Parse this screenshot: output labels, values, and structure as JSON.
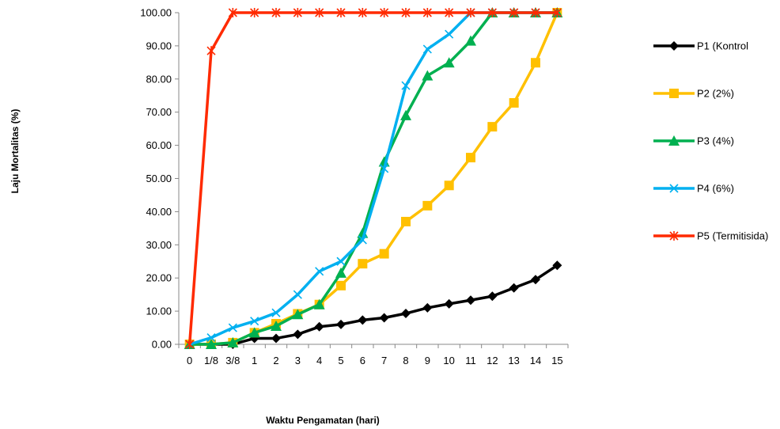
{
  "chart_data": {
    "type": "line",
    "title": "",
    "xlabel": "Waktu Pengamatan (hari)",
    "ylabel": "Laju Mortalitas (%)",
    "ylim": [
      0,
      100
    ],
    "y_ticks": [
      "0.00",
      "10.00",
      "20.00",
      "30.00",
      "40.00",
      "50.00",
      "60.00",
      "70.00",
      "80.00",
      "90.00",
      "100.00"
    ],
    "categories": [
      "0",
      "1/8",
      "3/8",
      "1",
      "2",
      "3",
      "4",
      "5",
      "6",
      "7",
      "8",
      "9",
      "10",
      "11",
      "12",
      "13",
      "14",
      "15"
    ],
    "grid": false,
    "legend_position": "right",
    "series": [
      {
        "name": "P1 (Kontrol",
        "color": "#000000",
        "marker": "diamond",
        "values": [
          0,
          0,
          0,
          1.8,
          1.8,
          3.0,
          5.3,
          6.0,
          7.3,
          8.0,
          9.3,
          11.0,
          12.2,
          13.3,
          14.5,
          17.0,
          19.5,
          23.8
        ]
      },
      {
        "name": "P2 (2%)",
        "color": "#FFC000",
        "marker": "square",
        "values": [
          0,
          0,
          0.5,
          3.5,
          6.2,
          9.2,
          12.0,
          17.7,
          24.3,
          27.3,
          37.0,
          41.8,
          47.9,
          56.3,
          65.6,
          72.8,
          84.9,
          100
        ]
      },
      {
        "name": "P3 (4%)",
        "color": "#00B050",
        "marker": "triangle",
        "values": [
          0,
          0,
          0.5,
          3.5,
          5.5,
          9.0,
          12.0,
          21.5,
          33.5,
          55.0,
          69.0,
          81.0,
          84.9,
          91.5,
          100,
          100,
          100,
          100
        ]
      },
      {
        "name": "P4 (6%)",
        "color": "#00B0F0",
        "marker": "x",
        "values": [
          0,
          2.0,
          5.0,
          7.0,
          9.5,
          15.0,
          22.0,
          25.0,
          31.5,
          53.0,
          78.0,
          89.0,
          93.5,
          100,
          100,
          100,
          100,
          100
        ]
      },
      {
        "name": "P5 (Termitisida)",
        "color": "#FF2A00",
        "marker": "asterisk",
        "values": [
          0,
          88.5,
          100,
          100,
          100,
          100,
          100,
          100,
          100,
          100,
          100,
          100,
          100,
          100,
          100,
          100,
          100,
          100
        ]
      }
    ]
  }
}
